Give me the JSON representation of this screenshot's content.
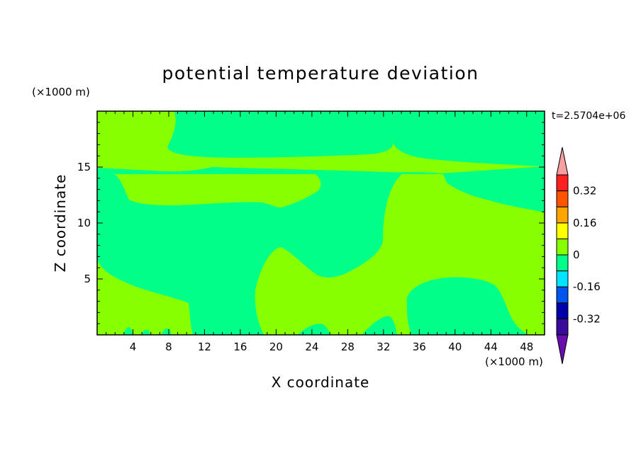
{
  "chart_data": {
    "type": "contour",
    "title": "potential temperature deviation",
    "xlabel": "X coordinate",
    "ylabel": "Z coordinate",
    "x_unit": "(×1000 m)",
    "y_unit": "(×1000 m)",
    "time_label": "t=2.5704e+06",
    "xlim": [
      0,
      50
    ],
    "ylim": [
      0,
      20
    ],
    "x_ticks": [
      4,
      8,
      12,
      16,
      20,
      24,
      28,
      32,
      36,
      40,
      44,
      48
    ],
    "y_ticks": [
      5,
      10,
      15
    ],
    "colorbar": {
      "levels": [
        -0.4,
        -0.32,
        -0.24,
        -0.16,
        -0.08,
        0,
        0.08,
        0.16,
        0.24,
        0.32,
        0.4
      ],
      "labels": [
        "0.32",
        "0.16",
        "0",
        "-0.16",
        "-0.32"
      ],
      "label_values": [
        0.32,
        0.16,
        0,
        -0.16,
        -0.32
      ],
      "colors": [
        "#6a0dad",
        "#3a0a9a",
        "#0000aa",
        "#0055ee",
        "#00e5ff",
        "#00ff88",
        "#88ff00",
        "#ffff00",
        "#ffa500",
        "#ff5500",
        "#ff2020",
        "#f7a0a0"
      ]
    },
    "region_colors": {
      "background": "#88ff00",
      "negative": "#00ff88"
    }
  }
}
